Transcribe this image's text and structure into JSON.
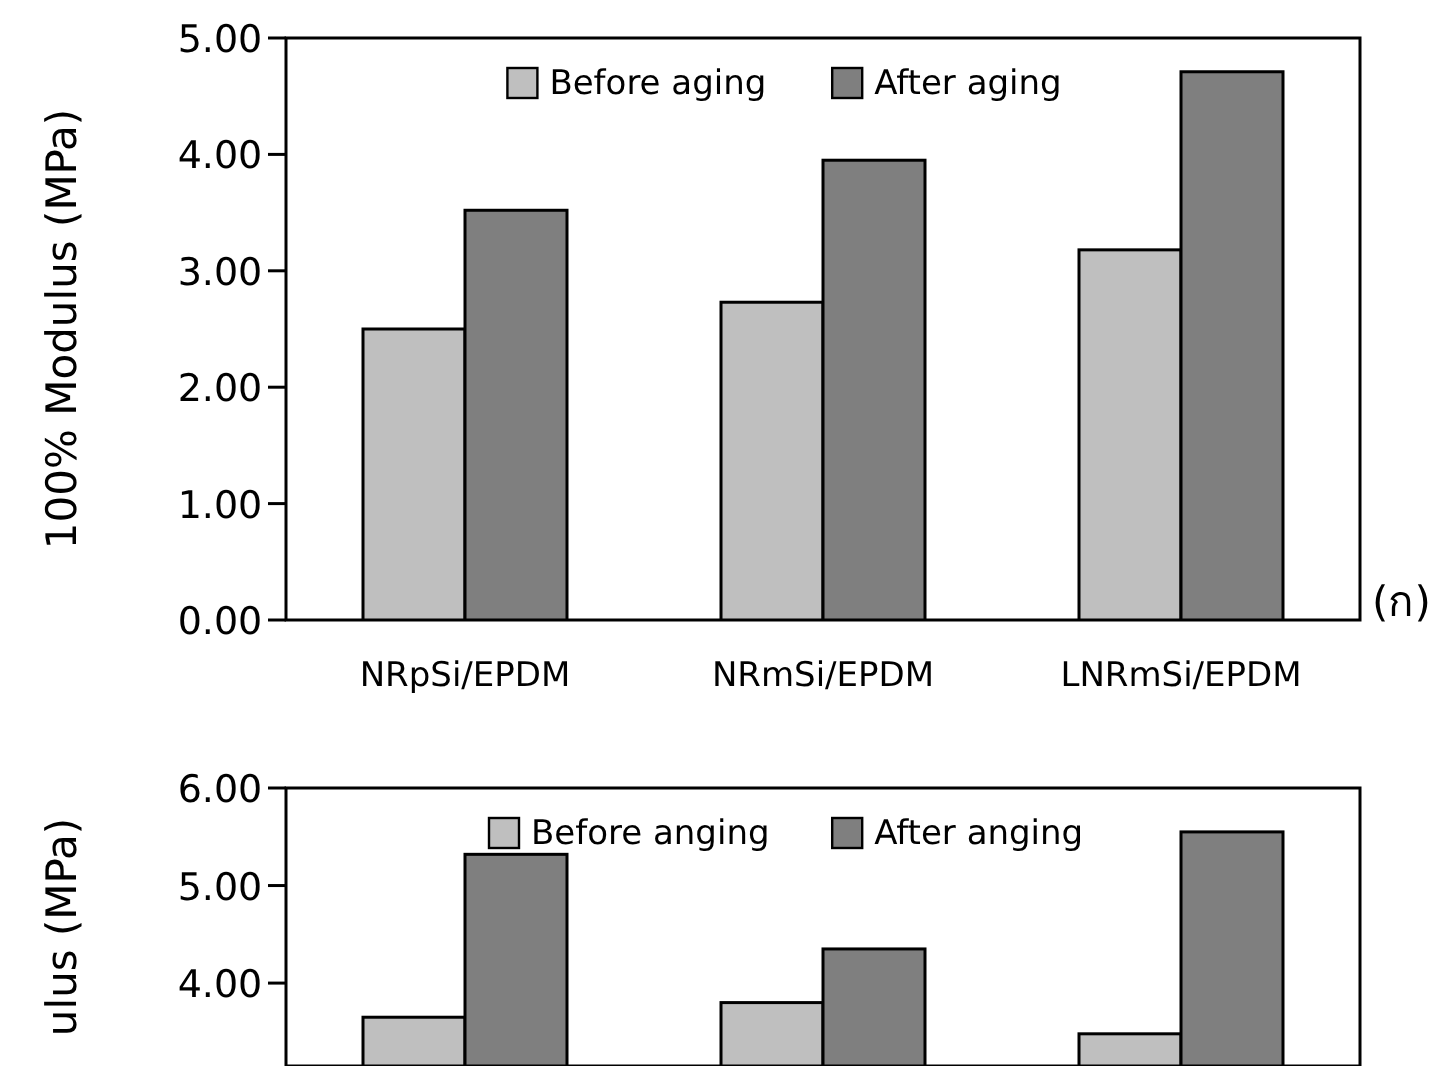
{
  "chart_data": [
    {
      "type": "bar",
      "ylabel": "100% Modulus (MPa)",
      "categories": [
        "NRpSi/EPDM",
        "NRmSi/EPDM",
        "LNRmSi/EPDM"
      ],
      "series": [
        {
          "name": "Before aging",
          "color": "#bfbfbf",
          "values": [
            2.5,
            2.73,
            3.18
          ]
        },
        {
          "name": "After aging",
          "color": "#7f7f7f",
          "values": [
            3.52,
            3.95,
            4.71
          ]
        }
      ],
      "ylim": [
        0,
        5
      ],
      "yticks": [
        {
          "value": 0,
          "label": "0.00"
        },
        {
          "value": 1,
          "label": "1.00"
        },
        {
          "value": 2,
          "label": "2.00"
        },
        {
          "value": 3,
          "label": "3.00"
        },
        {
          "value": 4,
          "label": "4.00"
        },
        {
          "value": 5,
          "label": "5.00"
        }
      ],
      "legend": "top",
      "annotations": [
        "(ก)"
      ]
    },
    {
      "type": "bar",
      "ylabel": "ulus (MPa)",
      "categories": [
        null,
        null,
        null
      ],
      "series": [
        {
          "name": "Before anging",
          "color": "#bfbfbf",
          "values": [
            3.65,
            3.8,
            3.48
          ]
        },
        {
          "name": "After anging",
          "color": "#7f7f7f",
          "values": [
            5.32,
            4.35,
            5.55
          ]
        }
      ],
      "ylim": [
        3.15,
        6
      ],
      "yticks": [
        {
          "value": 4,
          "label": "4.00"
        },
        {
          "value": 5,
          "label": "5.00"
        },
        {
          "value": 6,
          "label": "6.00"
        }
      ],
      "legend": "top",
      "tick_labels": "y"
    }
  ]
}
